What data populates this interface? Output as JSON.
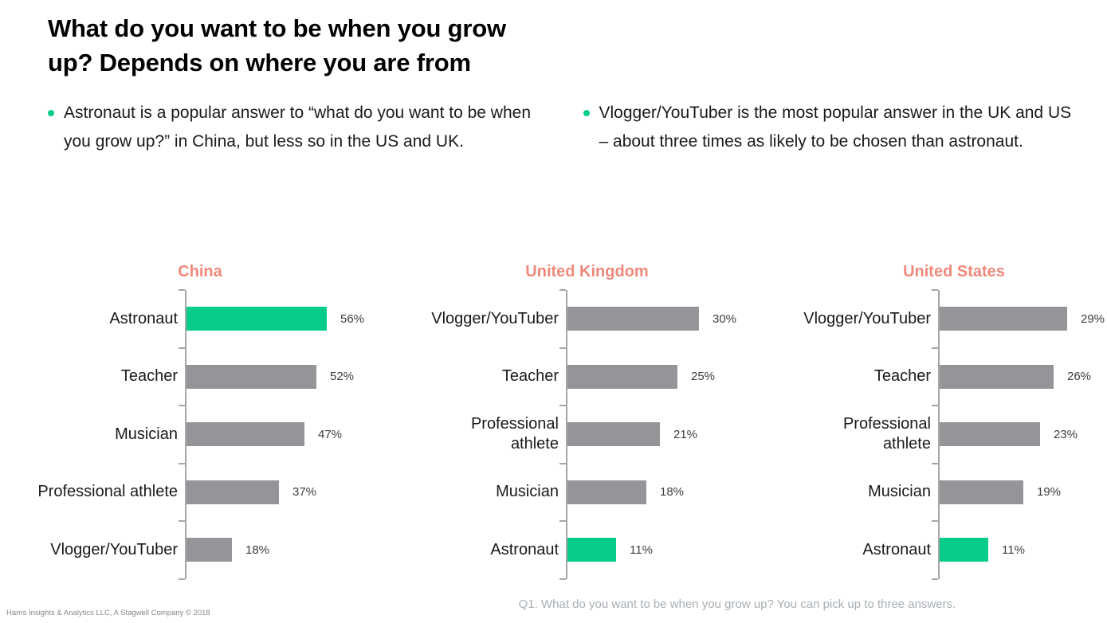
{
  "title": {
    "line1": "What do you want to be when you grow",
    "line2": "up? Depends on where you are from"
  },
  "bullets": [
    {
      "text": "Astronaut is a popular answer to “what do you want to be when you grow up?” in China, but less so in the US and UK."
    },
    {
      "text": "Vlogger/YouTuber is the most popular answer in the UK and US – about three times as likely to be chosen than astronaut."
    }
  ],
  "colors": {
    "highlight_green": "#05CB8B",
    "bar_gray": "#939598",
    "chart_title_coral": "#F0897B",
    "axis_gray": "#A6A6A6"
  },
  "chart_data": [
    {
      "type": "bar",
      "orientation": "horizontal",
      "title": "China",
      "categories": [
        "Astronaut",
        "Teacher",
        "Musician",
        "Professional athlete",
        "Vlogger/YouTuber"
      ],
      "values": [
        56,
        52,
        47,
        37,
        18
      ],
      "value_labels": [
        "56%",
        "52%",
        "47%",
        "37%",
        "18%"
      ],
      "highlight_category": "Astronaut",
      "xlim": [
        0,
        70
      ],
      "grid": false,
      "legend": "none"
    },
    {
      "type": "bar",
      "orientation": "horizontal",
      "title": "United Kingdom",
      "categories": [
        "Vlogger/YouTuber",
        "Teacher",
        "Professional athlete",
        "Musician",
        "Astronaut"
      ],
      "values": [
        30,
        25,
        21,
        18,
        11
      ],
      "value_labels": [
        "30%",
        "25%",
        "21%",
        "18%",
        "11%"
      ],
      "highlight_category": "Astronaut",
      "xlim": [
        0,
        40
      ],
      "grid": false,
      "legend": "none"
    },
    {
      "type": "bar",
      "orientation": "horizontal",
      "title": "United States",
      "categories": [
        "Vlogger/YouTuber",
        "Teacher",
        "Professional athlete",
        "Musician",
        "Astronaut"
      ],
      "values": [
        29,
        26,
        23,
        19,
        11
      ],
      "value_labels": [
        "29%",
        "26%",
        "23%",
        "19%",
        "11%"
      ],
      "highlight_category": "Astronaut",
      "xlim": [
        0,
        40
      ],
      "grid": false,
      "legend": "none"
    }
  ],
  "footer": {
    "source": "Harris Insights & Analytics LLC, A Stagwell Company © 2018",
    "question": "Q1. What do you want to be when you grow up? You can pick up to three answers."
  }
}
